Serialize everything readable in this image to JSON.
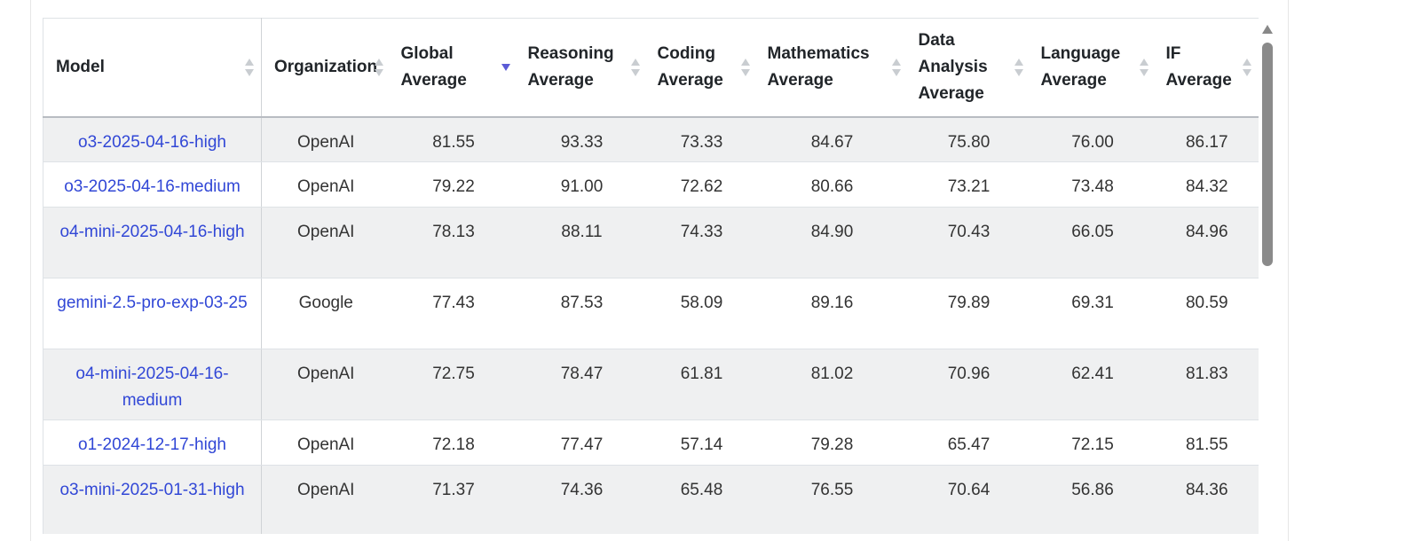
{
  "table": {
    "columns": [
      {
        "key": "model",
        "label": "Model",
        "lines": [
          "Model"
        ],
        "sorted": false
      },
      {
        "key": "organization",
        "label": "Organization",
        "lines": [
          "Organization"
        ],
        "sorted": false
      },
      {
        "key": "global",
        "label": "Global Average",
        "lines": [
          "Global",
          "Average"
        ],
        "sorted": true,
        "sort_direction": "descending"
      },
      {
        "key": "reasoning",
        "label": "Reasoning Average",
        "lines": [
          "Reasoning",
          "Average"
        ],
        "sorted": false
      },
      {
        "key": "coding",
        "label": "Coding Average",
        "lines": [
          "Coding",
          "Average"
        ],
        "sorted": false
      },
      {
        "key": "mathematics",
        "label": "Mathematics Average",
        "lines": [
          "Mathematics",
          "Average"
        ],
        "sorted": false
      },
      {
        "key": "data_analysis",
        "label": "Data Analysis Average",
        "lines": [
          "Data",
          "Analysis",
          "Average"
        ],
        "sorted": false
      },
      {
        "key": "language",
        "label": "Language Average",
        "lines": [
          "Language",
          "Average"
        ],
        "sorted": false
      },
      {
        "key": "if",
        "label": "IF Average",
        "lines": [
          "IF",
          "Average"
        ],
        "sorted": false
      }
    ],
    "rows": [
      {
        "model": "o3-2025-04-16-high",
        "organization": "OpenAI",
        "global": "81.55",
        "reasoning": "93.33",
        "coding": "73.33",
        "mathematics": "84.67",
        "data_analysis": "75.80",
        "language": "76.00",
        "if": "86.17"
      },
      {
        "model": "o3-2025-04-16-medium",
        "organization": "OpenAI",
        "global": "79.22",
        "reasoning": "91.00",
        "coding": "72.62",
        "mathematics": "80.66",
        "data_analysis": "73.21",
        "language": "73.48",
        "if": "84.32"
      },
      {
        "model": "o4-mini-2025-04-16-high",
        "organization": "OpenAI",
        "global": "78.13",
        "reasoning": "88.11",
        "coding": "74.33",
        "mathematics": "84.90",
        "data_analysis": "70.43",
        "language": "66.05",
        "if": "84.96"
      },
      {
        "model": "gemini-2.5-pro-exp-03-25",
        "organization": "Google",
        "global": "77.43",
        "reasoning": "87.53",
        "coding": "58.09",
        "mathematics": "89.16",
        "data_analysis": "79.89",
        "language": "69.31",
        "if": "80.59"
      },
      {
        "model": "o4-mini-2025-04-16-medium",
        "organization": "OpenAI",
        "global": "72.75",
        "reasoning": "78.47",
        "coding": "61.81",
        "mathematics": "81.02",
        "data_analysis": "70.96",
        "language": "62.41",
        "if": "81.83"
      },
      {
        "model": "o1-2024-12-17-high",
        "organization": "OpenAI",
        "global": "72.18",
        "reasoning": "77.47",
        "coding": "57.14",
        "mathematics": "79.28",
        "data_analysis": "65.47",
        "language": "72.15",
        "if": "81.55"
      },
      {
        "model": "o3-mini-2025-01-31-high",
        "organization": "OpenAI",
        "global": "71.37",
        "reasoning": "74.36",
        "coding": "65.48",
        "mathematics": "76.55",
        "data_analysis": "70.64",
        "language": "56.86",
        "if": "84.36"
      }
    ]
  },
  "colors": {
    "link": "#3147d6",
    "row_stripe": "#eff0f1",
    "sort_active": "#5b5bd6",
    "sort_inactive": "#c9cdd1",
    "scrollbar_thumb": "#8a8a8a"
  }
}
